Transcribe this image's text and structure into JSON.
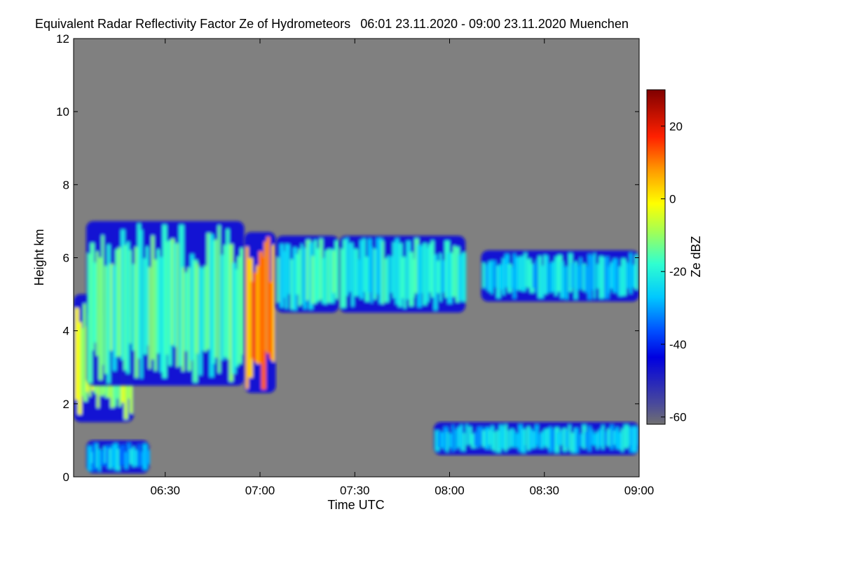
{
  "chart_data": {
    "type": "heatmap",
    "title": "Equivalent Radar Reflectivity Factor Ze of Hydrometeors",
    "time_range_text": "06:01 23.11.2020 - 09:00 23.11.2020",
    "location": "Muenchen",
    "xlabel": "Time UTC",
    "ylabel": "Height km",
    "xlim": [
      "06:01",
      "09:00"
    ],
    "ylim": [
      0,
      12
    ],
    "xticks": [
      "06:30",
      "07:00",
      "07:30",
      "08:00",
      "08:30",
      "09:00"
    ],
    "yticks": [
      0,
      2,
      4,
      6,
      8,
      10,
      12
    ],
    "background_color": "#808080",
    "colorbar": {
      "label": "Ze dBZ",
      "range": [
        -62,
        30
      ],
      "ticks": [
        20,
        0,
        -20,
        -40,
        -60
      ],
      "colormap": "jet"
    },
    "echo_regions": [
      {
        "t0": "06:01",
        "t1": "06:20",
        "h0": 1.5,
        "h1": 5.0,
        "ze_mean": -10
      },
      {
        "t0": "06:05",
        "t1": "06:55",
        "h0": 2.5,
        "h1": 7.0,
        "ze_mean": -20
      },
      {
        "t0": "06:55",
        "t1": "07:05",
        "h0": 2.3,
        "h1": 6.7,
        "ze_mean": 8
      },
      {
        "t0": "07:05",
        "t1": "07:25",
        "h0": 4.5,
        "h1": 6.6,
        "ze_mean": -22
      },
      {
        "t0": "07:25",
        "t1": "08:05",
        "h0": 4.5,
        "h1": 6.6,
        "ze_mean": -24
      },
      {
        "t0": "08:10",
        "t1": "09:00",
        "h0": 4.8,
        "h1": 6.2,
        "ze_mean": -26
      },
      {
        "t0": "07:55",
        "t1": "09:00",
        "h0": 0.6,
        "h1": 1.5,
        "ze_mean": -28
      },
      {
        "t0": "06:05",
        "t1": "06:25",
        "h0": 0.1,
        "h1": 1.0,
        "ze_mean": -30
      }
    ]
  }
}
